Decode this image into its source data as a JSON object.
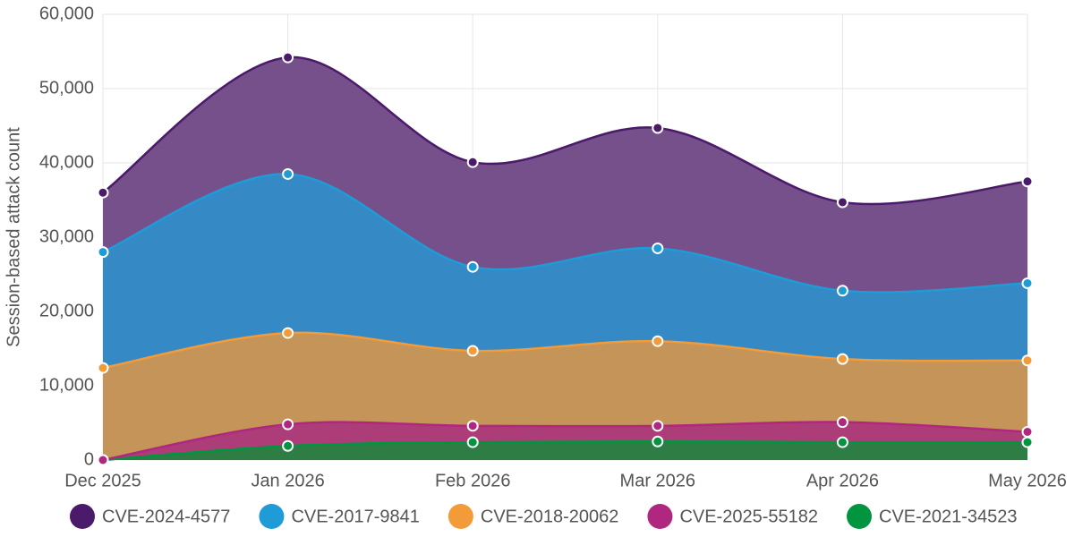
{
  "chart_data": {
    "type": "stacked-area",
    "y_label": "Session-based attack count",
    "categories": [
      "Dec 2025",
      "Jan 2026",
      "Feb 2026",
      "Mar 2026",
      "Apr 2026",
      "May 2026"
    ],
    "series": [
      {
        "name": "CVE-2021-34523",
        "color": "#00953e",
        "values": [
          0,
          1900,
          2400,
          2500,
          2400,
          2400
        ]
      },
      {
        "name": "CVE-2025-55182",
        "color": "#b0277f",
        "values": [
          0,
          2900,
          2200,
          2100,
          2700,
          1400
        ]
      },
      {
        "name": "CVE-2018-20062",
        "color": "#f29b38",
        "values": [
          12400,
          12300,
          10100,
          11400,
          8500,
          9600
        ]
      },
      {
        "name": "CVE-2017-9841",
        "color": "#1f9bd7",
        "values": [
          15600,
          21400,
          11300,
          12500,
          9200,
          10400
        ]
      },
      {
        "name": "CVE-2024-4577",
        "color": "#4b1a6b",
        "values": [
          8000,
          15700,
          14100,
          16200,
          11900,
          13700
        ]
      }
    ],
    "fills": [
      "#2e7d45",
      "#ad3d78",
      "#c49458",
      "#3589c5",
      "#76508a"
    ],
    "ylim": [
      0,
      60000
    ],
    "yticks": [
      0,
      {
        "value": 10000,
        "label": "10,000"
      },
      {
        "value": 20000,
        "label": "20,000"
      },
      {
        "value": 30000,
        "label": "30,000"
      },
      {
        "value": 40000,
        "label": "40,000"
      },
      {
        "value": 50000,
        "label": "50,000"
      },
      {
        "value": 60000,
        "label": "60,000"
      }
    ],
    "grid": true
  }
}
